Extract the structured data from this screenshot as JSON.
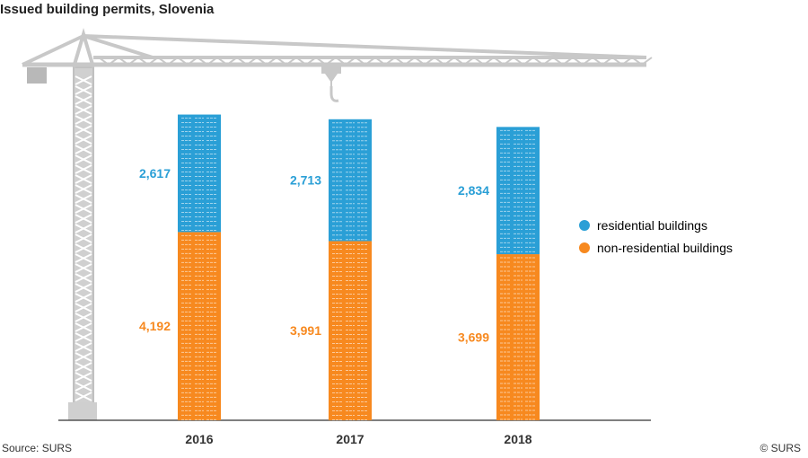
{
  "title": "Issued building permits, Slovenia",
  "source": "Source: SURS",
  "copyright": "© SURS",
  "colors": {
    "residential": "#2a9fd6",
    "non_residential": "#f7891f",
    "crane": "#c8c8c8",
    "axis": "#555555"
  },
  "chart_data": {
    "type": "bar",
    "stacked": true,
    "title": "Issued building permits, Slovenia",
    "categories": [
      "2016",
      "2017",
      "2018"
    ],
    "series": [
      {
        "name": "non-residential buildings",
        "values": [
          4192,
          3991,
          3699
        ],
        "labels": [
          "4,192",
          "3,991",
          "3,699"
        ]
      },
      {
        "name": "residential buildings",
        "values": [
          2617,
          2713,
          2834
        ],
        "labels": [
          "2,617",
          "2,713",
          "2,834"
        ]
      }
    ],
    "ylim": [
      0,
      7000
    ],
    "legend": "right",
    "grid": false
  }
}
